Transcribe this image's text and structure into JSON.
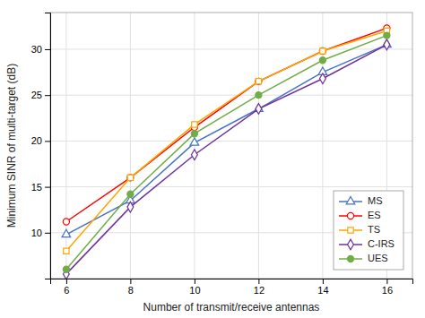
{
  "chart_data": {
    "type": "line",
    "xlabel": "Number of transmit/receive antennas",
    "ylabel": "Minimum SINR of multi-target (dB)",
    "x": [
      6,
      8,
      10,
      12,
      14,
      16
    ],
    "series": [
      {
        "name": "MS",
        "color": "#4472c4",
        "marker": "triangle-open",
        "values": [
          9.8,
          13.5,
          19.8,
          23.5,
          27.5,
          30.5
        ]
      },
      {
        "name": "ES",
        "color": "#ff0000",
        "marker": "circle-open",
        "values": [
          11.2,
          16.0,
          21.5,
          26.5,
          29.8,
          32.3
        ]
      },
      {
        "name": "TS",
        "color": "#ffa500",
        "marker": "square-open",
        "values": [
          8.0,
          16.0,
          21.8,
          26.5,
          29.8,
          32.0
        ]
      },
      {
        "name": "C-IRS",
        "color": "#7030a0",
        "marker": "diamond-open",
        "values": [
          5.5,
          12.8,
          18.5,
          23.5,
          26.8,
          30.5
        ]
      },
      {
        "name": "UES",
        "color": "#70ad47",
        "marker": "circle",
        "values": [
          6.0,
          14.2,
          20.8,
          25.0,
          28.8,
          31.5
        ]
      }
    ],
    "xlim": [
      5.5,
      16.8
    ],
    "ylim": [
      5,
      34
    ],
    "xticks": [
      6,
      8,
      10,
      12,
      14,
      16
    ],
    "yticks": [
      10,
      15,
      20,
      25,
      30
    ],
    "grid": true,
    "legend": "lower right"
  }
}
